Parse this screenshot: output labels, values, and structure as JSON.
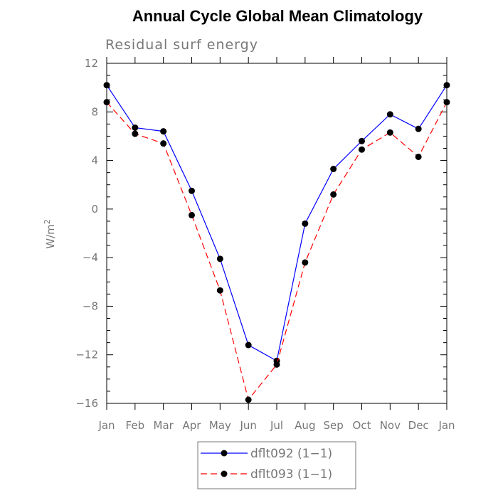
{
  "chart_data": {
    "type": "line",
    "title": "Annual Cycle Global Mean Climatology",
    "subtitle": "Residual surf energy",
    "ylabel": "W/m",
    "ylabel_superscript": "2",
    "categories": [
      "Jan",
      "Feb",
      "Mar",
      "Apr",
      "May",
      "Jun",
      "Jul",
      "Aug",
      "Sep",
      "Oct",
      "Nov",
      "Dec",
      "Jan"
    ],
    "ylim": [
      -16,
      12
    ],
    "yticks": [
      12,
      8,
      4,
      0,
      -4,
      -8,
      -12,
      -16
    ],
    "ytick_labels": [
      "12",
      "8",
      "4",
      "0",
      "−4",
      "−8",
      "−12",
      "−16"
    ],
    "series": [
      {
        "name": "dflt092 (1−1)",
        "color": "#0000ff",
        "line_style": "solid",
        "marker": "filled-circle",
        "values": [
          10.2,
          6.7,
          6.4,
          1.5,
          -4.1,
          -11.2,
          -12.5,
          -1.2,
          3.3,
          5.6,
          7.8,
          6.6,
          10.2
        ]
      },
      {
        "name": "dflt093 (1−1)",
        "color": "#ff0000",
        "line_style": "dashed",
        "marker": "filled-circle",
        "values": [
          8.8,
          6.2,
          5.4,
          -0.5,
          -6.7,
          -15.7,
          -12.8,
          -4.4,
          1.2,
          4.9,
          6.3,
          4.3,
          8.8
        ]
      }
    ],
    "legend_position": "bottom-center",
    "grid": false
  }
}
